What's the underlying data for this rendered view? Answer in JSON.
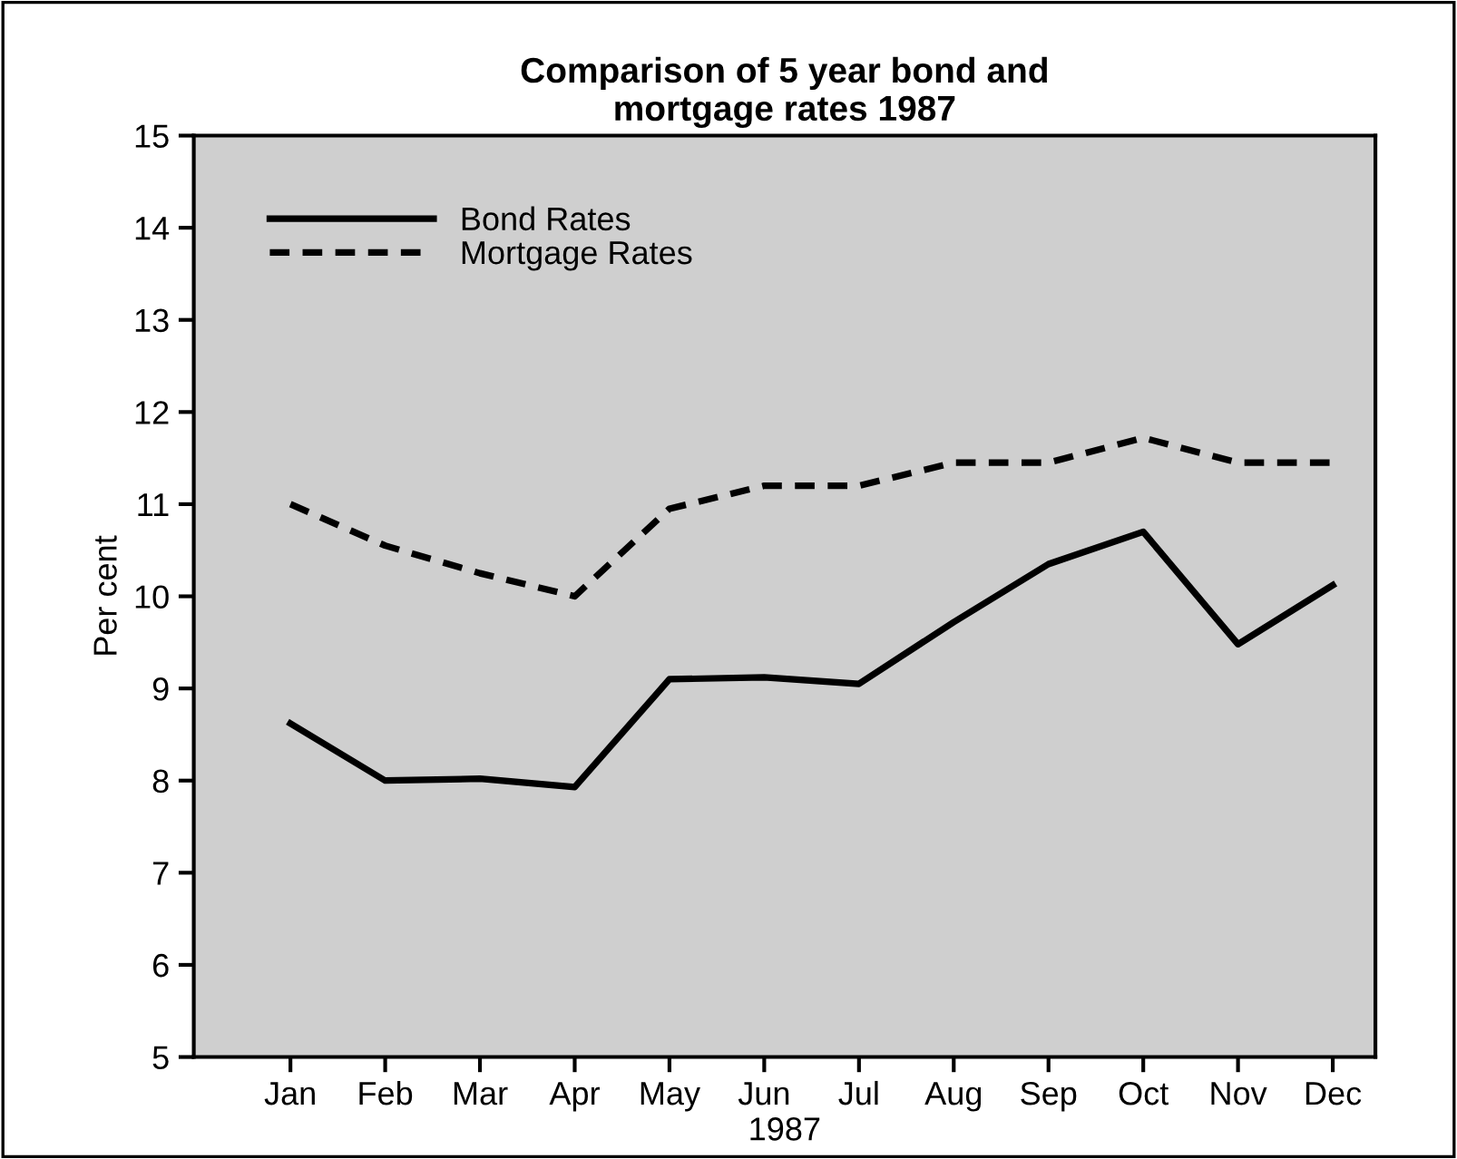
{
  "chart_data": {
    "type": "line",
    "title": "Comparison of 5 year bond and\nmortgage rates 1987",
    "xlabel": "1987",
    "ylabel": "Per cent",
    "categories": [
      "Jan",
      "Feb",
      "Mar",
      "Apr",
      "May",
      "Jun",
      "Jul",
      "Aug",
      "Sep",
      "Oct",
      "Nov",
      "Dec"
    ],
    "series": [
      {
        "name": "Bond Rates",
        "color": "#000000",
        "line_style": "solid",
        "values": [
          8.62,
          8.0,
          8.02,
          7.93,
          9.1,
          9.12,
          9.05,
          9.72,
          10.35,
          10.7,
          9.48,
          10.12
        ]
      },
      {
        "name": "Mortgage Rates",
        "color": "#000000",
        "line_style": "dashed",
        "values": [
          11.0,
          10.55,
          10.25,
          10.0,
          10.95,
          11.2,
          11.2,
          11.45,
          11.45,
          11.72,
          11.45,
          11.45
        ]
      }
    ],
    "ylim": [
      5,
      15
    ],
    "yticks": [
      5,
      6,
      7,
      8,
      9,
      10,
      11,
      12,
      13,
      14,
      15
    ],
    "grid": false,
    "legend": "top left"
  }
}
